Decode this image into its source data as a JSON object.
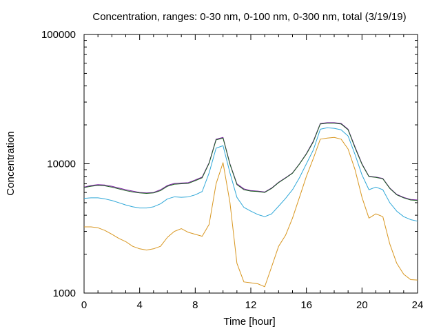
{
  "chart_data": {
    "type": "line",
    "title": "Concentration, ranges: 0-30 nm, 0-100 nm, 0-300 nm, total (3/19/19)",
    "xlabel": "Time [hour]",
    "ylabel": "Concentration",
    "xlim": [
      0,
      24
    ],
    "ylim": [
      1000,
      100000
    ],
    "yscale": "log",
    "grid": false,
    "x_ticks": [
      0,
      4,
      8,
      12,
      16,
      20,
      24
    ],
    "x_tick_labels": [
      "0",
      "4",
      "8",
      "12",
      "16",
      "20",
      "24"
    ],
    "y_ticks": [
      1000,
      10000,
      100000
    ],
    "y_tick_labels": [
      "1000",
      "10000",
      "100000"
    ],
    "x": [
      0,
      0.5,
      1,
      1.5,
      2,
      2.5,
      3,
      3.5,
      4,
      4.5,
      5,
      5.5,
      6,
      6.5,
      7,
      7.5,
      8,
      8.5,
      9,
      9.5,
      10,
      10.5,
      11,
      11.5,
      12,
      12.5,
      13,
      13.5,
      14,
      14.5,
      15,
      15.5,
      16,
      16.5,
      17,
      17.5,
      18,
      18.5,
      19,
      19.5,
      20,
      20.5,
      21,
      21.5,
      22,
      22.5,
      23,
      23.5,
      24
    ],
    "series": [
      {
        "color": "#7b1fa2",
        "values": [
          6600,
          6800,
          6900,
          6850,
          6700,
          6500,
          6300,
          6150,
          6000,
          5950,
          6000,
          6300,
          6800,
          7050,
          7100,
          7150,
          7500,
          7900,
          10200,
          15500,
          16000,
          10000,
          7000,
          6400,
          6200,
          6150,
          6050,
          6500,
          7200,
          7800,
          8500,
          10000,
          12000,
          15000,
          20500,
          20800,
          20800,
          20500,
          18500,
          13500,
          10000,
          8000,
          7900,
          7700,
          6500,
          5800,
          5500,
          5300,
          5250
        ]
      },
      {
        "color": "#1b5e20",
        "values": [
          6550,
          6700,
          6800,
          6750,
          6600,
          6400,
          6200,
          6050,
          5950,
          5900,
          5950,
          6200,
          6700,
          6950,
          7000,
          7050,
          7400,
          7800,
          10100,
          15300,
          15800,
          9900,
          6900,
          6300,
          6150,
          6100,
          6000,
          6450,
          7150,
          7750,
          8450,
          9950,
          11900,
          14800,
          20300,
          20600,
          20600,
          20300,
          18300,
          13300,
          9900,
          7950,
          7850,
          7650,
          6450,
          5750,
          5450,
          5250,
          5200
        ]
      },
      {
        "color": "#2ea7d8",
        "values": [
          5400,
          5450,
          5450,
          5350,
          5200,
          5000,
          4800,
          4650,
          4550,
          4550,
          4650,
          4900,
          5350,
          5550,
          5500,
          5550,
          5750,
          6100,
          8500,
          13200,
          13800,
          8500,
          5500,
          4600,
          4300,
          4050,
          3900,
          4100,
          4700,
          5400,
          6300,
          7800,
          10000,
          12800,
          18500,
          19000,
          18800,
          18300,
          16400,
          11800,
          8200,
          6300,
          6600,
          6300,
          5000,
          4300,
          3900,
          3700,
          3600
        ]
      },
      {
        "color": "#d8961f",
        "values": [
          3250,
          3250,
          3200,
          3050,
          2850,
          2650,
          2500,
          2300,
          2200,
          2150,
          2200,
          2300,
          2700,
          3000,
          3150,
          2950,
          2850,
          2750,
          3400,
          7000,
          10200,
          5000,
          1700,
          1220,
          1200,
          1180,
          1120,
          1600,
          2300,
          2800,
          3800,
          5500,
          8000,
          11000,
          15500,
          15800,
          16000,
          15500,
          13000,
          9000,
          5500,
          3800,
          4100,
          3900,
          2400,
          1700,
          1400,
          1270,
          1260
        ]
      }
    ]
  }
}
